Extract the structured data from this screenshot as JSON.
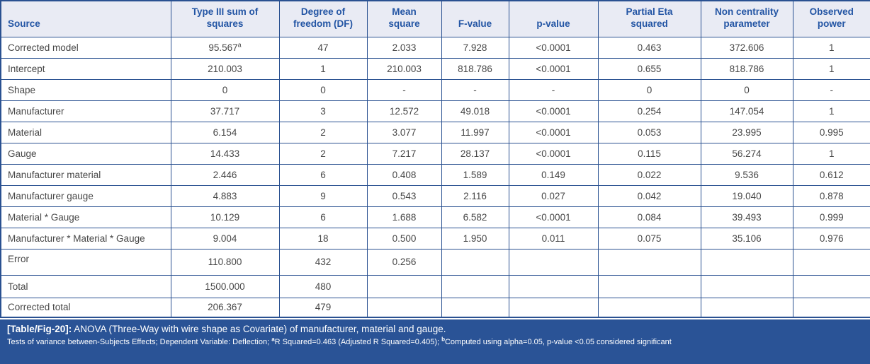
{
  "colors": {
    "border": "#2a5191",
    "header_bg": "#e9ebf4",
    "header_text": "#2355a4",
    "body_text": "#474747",
    "caption_bg": "#2a5396",
    "caption_text": "#ffffff"
  },
  "table": {
    "columns": [
      {
        "key": "source",
        "label": "Source"
      },
      {
        "key": "type3ss",
        "label": "Type III sum of squares"
      },
      {
        "key": "df",
        "label": "Degree of freedom (DF)"
      },
      {
        "key": "mean_square",
        "label": "Mean square"
      },
      {
        "key": "f_value",
        "label": "F-value"
      },
      {
        "key": "p_value",
        "label": "p-value"
      },
      {
        "key": "partial_eta_squared",
        "label": "Partial Eta squared"
      },
      {
        "key": "non_centrality_parameter",
        "label": "Non centrality parameter"
      },
      {
        "key": "observed_power",
        "label": "Observed power"
      }
    ],
    "rows": [
      {
        "source": "Corrected model",
        "superscript": "a",
        "values": [
          "95.567",
          "47",
          "2.033",
          "7.928",
          "<0.0001",
          "0.463",
          "372.606",
          "1"
        ]
      },
      {
        "source": "Intercept",
        "values": [
          "210.003",
          "1",
          "210.003",
          "818.786",
          "<0.0001",
          "0.655",
          "818.786",
          "1"
        ]
      },
      {
        "source": "Shape",
        "values": [
          "0",
          "0",
          "-",
          "-",
          "-",
          "0",
          "0",
          "-"
        ]
      },
      {
        "source": "Manufacturer",
        "values": [
          "37.717",
          "3",
          "12.572",
          "49.018",
          "<0.0001",
          "0.254",
          "147.054",
          "1"
        ]
      },
      {
        "source": "Material",
        "values": [
          "6.154",
          "2",
          "3.077",
          "11.997",
          "<0.0001",
          "0.053",
          "23.995",
          "0.995"
        ]
      },
      {
        "source": "Gauge",
        "values": [
          "14.433",
          "2",
          "7.217",
          "28.137",
          "<0.0001",
          "0.115",
          "56.274",
          "1"
        ]
      },
      {
        "source": "Manufacturer material",
        "values": [
          "2.446",
          "6",
          "0.408",
          "1.589",
          "0.149",
          "0.022",
          "9.536",
          "0.612"
        ]
      },
      {
        "source": "Manufacturer gauge",
        "values": [
          "4.883",
          "9",
          "0.543",
          "2.116",
          "0.027",
          "0.042",
          "19.040",
          "0.878"
        ]
      },
      {
        "source": "Material * Gauge",
        "values": [
          "10.129",
          "6",
          "1.688",
          "6.582",
          "<0.0001",
          "0.084",
          "39.493",
          "0.999"
        ]
      },
      {
        "source": "Manufacturer * Material * Gauge",
        "values": [
          "9.004",
          "18",
          "0.500",
          "1.950",
          "0.011",
          "0.075",
          "35.106",
          "0.976"
        ]
      },
      {
        "source": "Error",
        "values": [
          "110.800",
          "432",
          "0.256",
          "",
          "",
          "",
          "",
          ""
        ]
      },
      {
        "source": "Total",
        "values": [
          "1500.000",
          "480",
          "",
          "",
          "",
          "",
          "",
          ""
        ]
      },
      {
        "source": "Corrected total",
        "values": [
          "206.367",
          "479",
          "",
          "",
          "",
          "",
          "",
          ""
        ]
      }
    ]
  },
  "caption": {
    "tag": "[Table/Fig-20]:",
    "title": "ANOVA (Three-Way with wire shape as Covariate) of manufacturer, material and gauge.",
    "note_segments": [
      {
        "text": "Tests of variance between-Subjects Effects; Dependent Variable: Deflection; "
      },
      {
        "text": "a",
        "sup": true
      },
      {
        "text": "R Squared=0.463 (Adjusted R Squared=0.405); "
      },
      {
        "text": "b",
        "sup": true
      },
      {
        "text": "Computed using alpha=0.05, p-value <0.05 considered significant"
      }
    ]
  }
}
